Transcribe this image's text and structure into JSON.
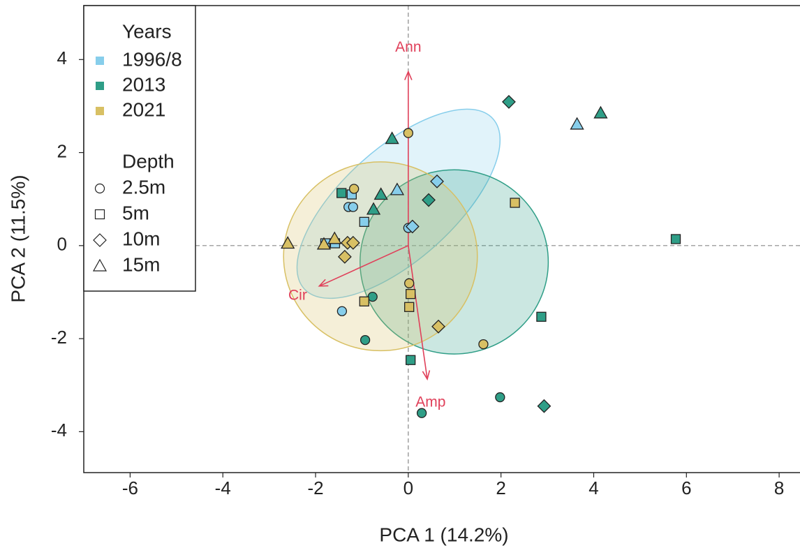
{
  "chart_data": {
    "type": "scatter",
    "x_label": "PCA 1 (14.2%)",
    "y_label": "PCA 2 (11.5%)",
    "xlim": [
      -7,
      8.45
    ],
    "ylim": [
      -4.88,
      5.16
    ],
    "xticks": [
      -6,
      -4,
      -2,
      0,
      2,
      4,
      6,
      8
    ],
    "yticks": [
      -4,
      -2,
      0,
      2,
      4
    ],
    "reference_lines": {
      "x": 0,
      "y": 0
    },
    "legend_position": "upper left",
    "legend_title": "Years",
    "depth_legend": {
      "title": "Depth",
      "labels": [
        "2.5m",
        "5m",
        "10m",
        "15m"
      ],
      "shapes": [
        "circle",
        "square",
        "diamond",
        "triangle"
      ]
    },
    "series": [
      {
        "name": "1996/8",
        "color": "#87ceeb",
        "x": [
          3.64,
          -0.24,
          0.62,
          -1.22,
          -1.29,
          -1.19,
          -0.95,
          0,
          0.09,
          -1.79,
          -1.58,
          -1.43
        ],
        "y": [
          2.61,
          1.2,
          1.38,
          1.1,
          0.83,
          0.83,
          0.51,
          0.38,
          0.41,
          0.05,
          0.05,
          -1.41
        ],
        "depth": [
          "15m",
          "15m",
          "10m",
          "5m",
          "2.5m",
          "2.5m",
          "5m",
          "2.5m",
          "10m",
          "5m",
          "5m",
          "2.5m"
        ],
        "ellipse": {
          "cx": -0.21,
          "cy": 0.9,
          "rx": 2.74,
          "ry": 1.2,
          "angle": 42
        }
      },
      {
        "name": "2013",
        "color": "#2f9e87",
        "x": [
          2.17,
          4.15,
          -0.35,
          -1.44,
          -0.59,
          -0.75,
          0.44,
          5.77,
          -0.77,
          2.87,
          -0.93,
          0.05,
          1.98,
          2.93,
          0.29
        ],
        "y": [
          3.09,
          2.85,
          2.3,
          1.13,
          1.1,
          0.78,
          0.98,
          0.14,
          -1.1,
          -1.53,
          -2.03,
          -2.46,
          -3.26,
          -3.45,
          -3.6
        ],
        "depth": [
          "10m",
          "15m",
          "15m",
          "5m",
          "15m",
          "15m",
          "10m",
          "5m",
          "2.5m",
          "5m",
          "2.5m",
          "5m",
          "2.5m",
          "10m",
          "2.5m"
        ],
        "ellipse": {
          "cx": 0.99,
          "cy": -0.35,
          "rx": 2.03,
          "ry": 1.98,
          "angle": 0
        }
      },
      {
        "name": "2021",
        "color": "#d8c064",
        "x": [
          0,
          -1.17,
          2.3,
          -2.6,
          -1.59,
          -1.82,
          -1.31,
          -1.19,
          -1.37,
          0.02,
          0.05,
          -0.95,
          0.02,
          0.65,
          1.62
        ],
        "y": [
          2.42,
          1.22,
          0.92,
          0.05,
          0.15,
          0.03,
          0.06,
          0.06,
          -0.24,
          -0.81,
          -1.04,
          -1.2,
          -1.32,
          -1.74,
          -2.12
        ],
        "depth": [
          "2.5m",
          "2.5m",
          "5m",
          "15m",
          "15m",
          "15m",
          "10m",
          "10m",
          "10m",
          "2.5m",
          "5m",
          "5m",
          "5m",
          "10m",
          "2.5m"
        ],
        "ellipse": {
          "cx": -0.6,
          "cy": -0.23,
          "rx": 2.09,
          "ry": 2.03,
          "angle": 0
        }
      }
    ],
    "arrow_color": "#e0405a",
    "arrows": [
      {
        "name": "Ann",
        "x": 0,
        "y": 3.74
      },
      {
        "name": "Cir",
        "x": -1.92,
        "y": -0.87
      },
      {
        "name": "Amp",
        "x": 0.41,
        "y": -2.87
      }
    ]
  }
}
